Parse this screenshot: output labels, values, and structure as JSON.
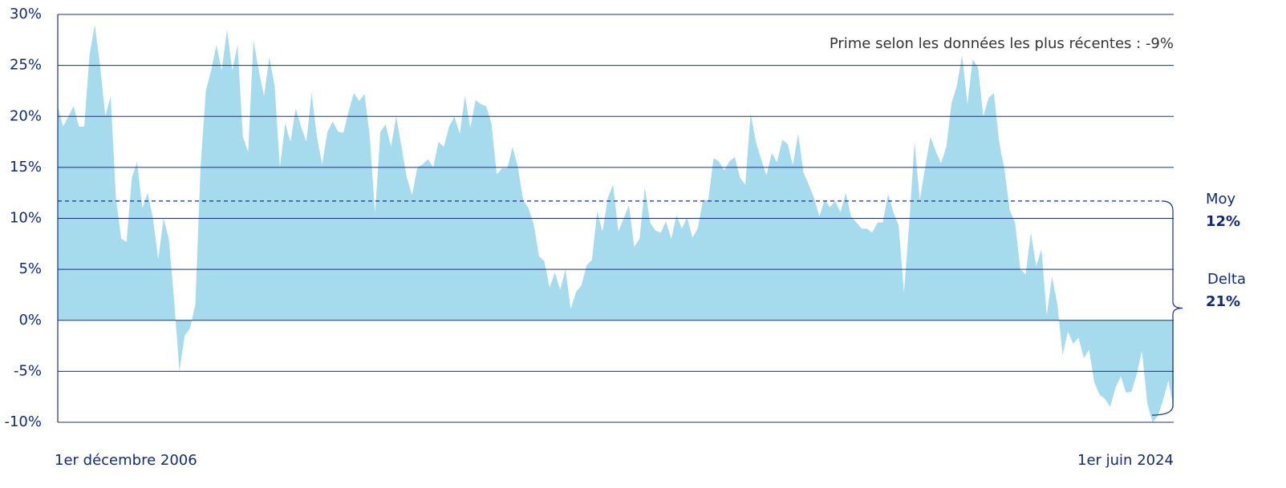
{
  "chart_data": {
    "type": "area",
    "annotation": "Prime selon les données les plus récentes : -9%",
    "categories": [
      "1er décembre 2006",
      null,
      null,
      null,
      null,
      null,
      null,
      null,
      null,
      null,
      null,
      null,
      null,
      null,
      null,
      null,
      null,
      null,
      null,
      null,
      null,
      null,
      null,
      null,
      null,
      null,
      null,
      null,
      null,
      null,
      null,
      null,
      null,
      null,
      null,
      null,
      null,
      null,
      null,
      null,
      null,
      null,
      null,
      null,
      null,
      null,
      null,
      null,
      null,
      null,
      null,
      null,
      null,
      null,
      null,
      null,
      null,
      null,
      null,
      null,
      null,
      null,
      null,
      null,
      null,
      null,
      null,
      null,
      null,
      null,
      null,
      null,
      null,
      null,
      null,
      null,
      null,
      null,
      null,
      null,
      null,
      null,
      null,
      null,
      null,
      null,
      null,
      null,
      null,
      null,
      null,
      null,
      null,
      null,
      null,
      null,
      null,
      null,
      null,
      null,
      null,
      null,
      null,
      null,
      null,
      null,
      null,
      null,
      null,
      null,
      null,
      null,
      null,
      null,
      null,
      null,
      null,
      null,
      null,
      null,
      null,
      null,
      null,
      null,
      null,
      null,
      null,
      null,
      null,
      null,
      null,
      null,
      null,
      null,
      null,
      null,
      null,
      null,
      null,
      null,
      null,
      null,
      null,
      null,
      null,
      null,
      null,
      null,
      null,
      null,
      null,
      null,
      null,
      null,
      null,
      null,
      null,
      null,
      null,
      null,
      null,
      null,
      null,
      null,
      null,
      null,
      null,
      null,
      null,
      null,
      null,
      null,
      null,
      null,
      null,
      null,
      null,
      null,
      null,
      null,
      null,
      null,
      null,
      null,
      null,
      null,
      null,
      null,
      null,
      null,
      null,
      null,
      null,
      null,
      null,
      null,
      null,
      null,
      null,
      null,
      null,
      null,
      null,
      null,
      null,
      null,
      null,
      null,
      null,
      null,
      null,
      "1er juin 2024"
    ],
    "values": [
      21,
      19,
      20,
      21,
      19,
      19,
      26,
      29,
      25,
      20,
      22,
      12,
      8,
      7.7,
      14,
      15.5,
      11,
      12.5,
      10,
      6,
      10,
      8,
      2,
      -5,
      -1.5,
      -0.8,
      1.5,
      15,
      22.5,
      24.5,
      27,
      24.5,
      28.5,
      24.5,
      27,
      18,
      16.5,
      27.5,
      24.5,
      22,
      25.8,
      23,
      15,
      19.3,
      17.5,
      20.8,
      19,
      17.5,
      22.3,
      18,
      15.3,
      18.5,
      19.5,
      18.5,
      18.4,
      20.5,
      22.3,
      21.5,
      22.2,
      18,
      10.5,
      18.5,
      19.2,
      17,
      20,
      17,
      14,
      12.3,
      15,
      15.3,
      15.8,
      15,
      17.5,
      17,
      19,
      20,
      18.3,
      22,
      18.9,
      21.6,
      21.2,
      21,
      19.3,
      14.3,
      14.9,
      14.9,
      17,
      15,
      11.8,
      11,
      9.4,
      6.3,
      5.8,
      3.2,
      4.7,
      3,
      5,
      1.1,
      2.8,
      3.4,
      5.4,
      5.9,
      10.7,
      8.7,
      12,
      13.3,
      8.7,
      10,
      11.3,
      7.2,
      8,
      13,
      9.6,
      8.8,
      8.6,
      9.7,
      8,
      10.3,
      9,
      10.1,
      8.1,
      9,
      11.8,
      11.8,
      15.9,
      15.6,
      14.7,
      15.6,
      16,
      14,
      13.3,
      20.3,
      17.5,
      15.8,
      14.2,
      16.4,
      15.5,
      17.7,
      17.3,
      15.2,
      18.3,
      14.5,
      13.3,
      12,
      10.2,
      11.8,
      11.1,
      11.7,
      10.6,
      12.5,
      10.2,
      9.6,
      9,
      9,
      8.6,
      9.6,
      9.6,
      12.4,
      10.6,
      9.3,
      2.7,
      9.6,
      17.5,
      11.8,
      15,
      18,
      16.6,
      15.4,
      17,
      21.3,
      23,
      26,
      21.2,
      25.6,
      24.8,
      20,
      21.8,
      22.3,
      17.5,
      14.8,
      10.8,
      9.6,
      5,
      4.5,
      8.6,
      5.3,
      7,
      0.5,
      4.3,
      1.6,
      -3.4,
      -1.1,
      -2.3,
      -1.7,
      -3.7,
      -2.9,
      -6.1,
      -7.3,
      -7.7,
      -8.5,
      -6.6,
      -5.5,
      -7.1,
      -7,
      -5.3,
      -3,
      -8.1,
      -10,
      -9.4,
      -7.8,
      -5.9,
      -8.7
    ],
    "color": "#a6dbed",
    "ylim": [
      -10,
      30
    ],
    "yticks": [
      {
        "value": -10,
        "label": "-10%"
      },
      {
        "value": -5,
        "label": "-5%"
      },
      {
        "value": 0,
        "label": "0%"
      },
      {
        "value": 5,
        "label": "5%"
      },
      {
        "value": 10,
        "label": "10%"
      },
      {
        "value": 15,
        "label": "15%"
      },
      {
        "value": 20,
        "label": "20%"
      },
      {
        "value": 25,
        "label": "25%"
      },
      {
        "value": 30,
        "label": "30%"
      }
    ],
    "grid": true,
    "mean": {
      "label": "Moy",
      "value": 11.7,
      "value_label": "12%"
    },
    "delta": {
      "label": "Delta",
      "value": 21,
      "value_label": "21%"
    }
  }
}
